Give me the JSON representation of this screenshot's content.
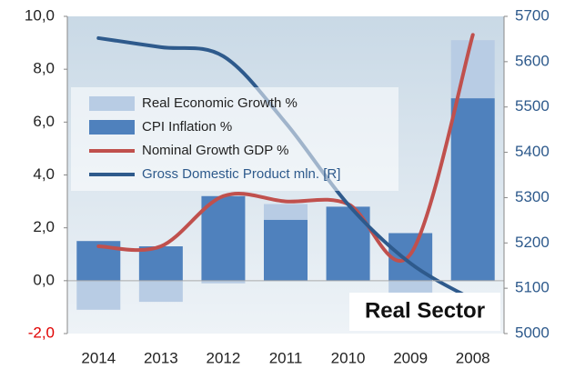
{
  "chart_data": {
    "type": "bar_line",
    "categories": [
      "2014",
      "2013",
      "2012",
      "2011",
      "2010",
      "2009",
      "2008"
    ],
    "series": [
      {
        "name": "Real Economic Growth %",
        "color": "#b8cce4",
        "kind": "stacked_bar",
        "values": [
          -1.1,
          -0.8,
          -0.1,
          0.6,
          0,
          -0.45,
          2.2
        ]
      },
      {
        "name": "CPI Inflation %",
        "color": "#4f81bd",
        "kind": "bar",
        "values": [
          1.5,
          1.3,
          3.2,
          2.3,
          2.8,
          1.8,
          6.9
        ]
      },
      {
        "name": "Nominal Growth GDP %",
        "color": "#c0504d",
        "kind": "line",
        "values": [
          1.3,
          1.3,
          3.2,
          3.0,
          2.9,
          1.0,
          9.3
        ]
      },
      {
        "name": "Gross Domestic Product mln. [R]",
        "color": "#2e5a8c",
        "kind": "line",
        "axis": "y2",
        "values": [
          5652,
          5632,
          5612,
          5465,
          5285,
          5155,
          5075
        ]
      }
    ],
    "ylim": [
      -2,
      10
    ],
    "yticks": [
      {
        "value": -2,
        "label": "-2,0"
      },
      {
        "value": 0,
        "label": "0,0"
      },
      {
        "value": 2,
        "label": "2,0"
      },
      {
        "value": 4,
        "label": "4,0"
      },
      {
        "value": 6,
        "label": "6,0"
      },
      {
        "value": 8,
        "label": "8,0"
      },
      {
        "value": 10,
        "label": "10,0"
      }
    ],
    "y2lim": [
      5000,
      5700
    ],
    "y2ticks": [
      5000,
      5100,
      5200,
      5300,
      5400,
      5500,
      5600,
      5700
    ],
    "annotation": "Real Sector"
  }
}
